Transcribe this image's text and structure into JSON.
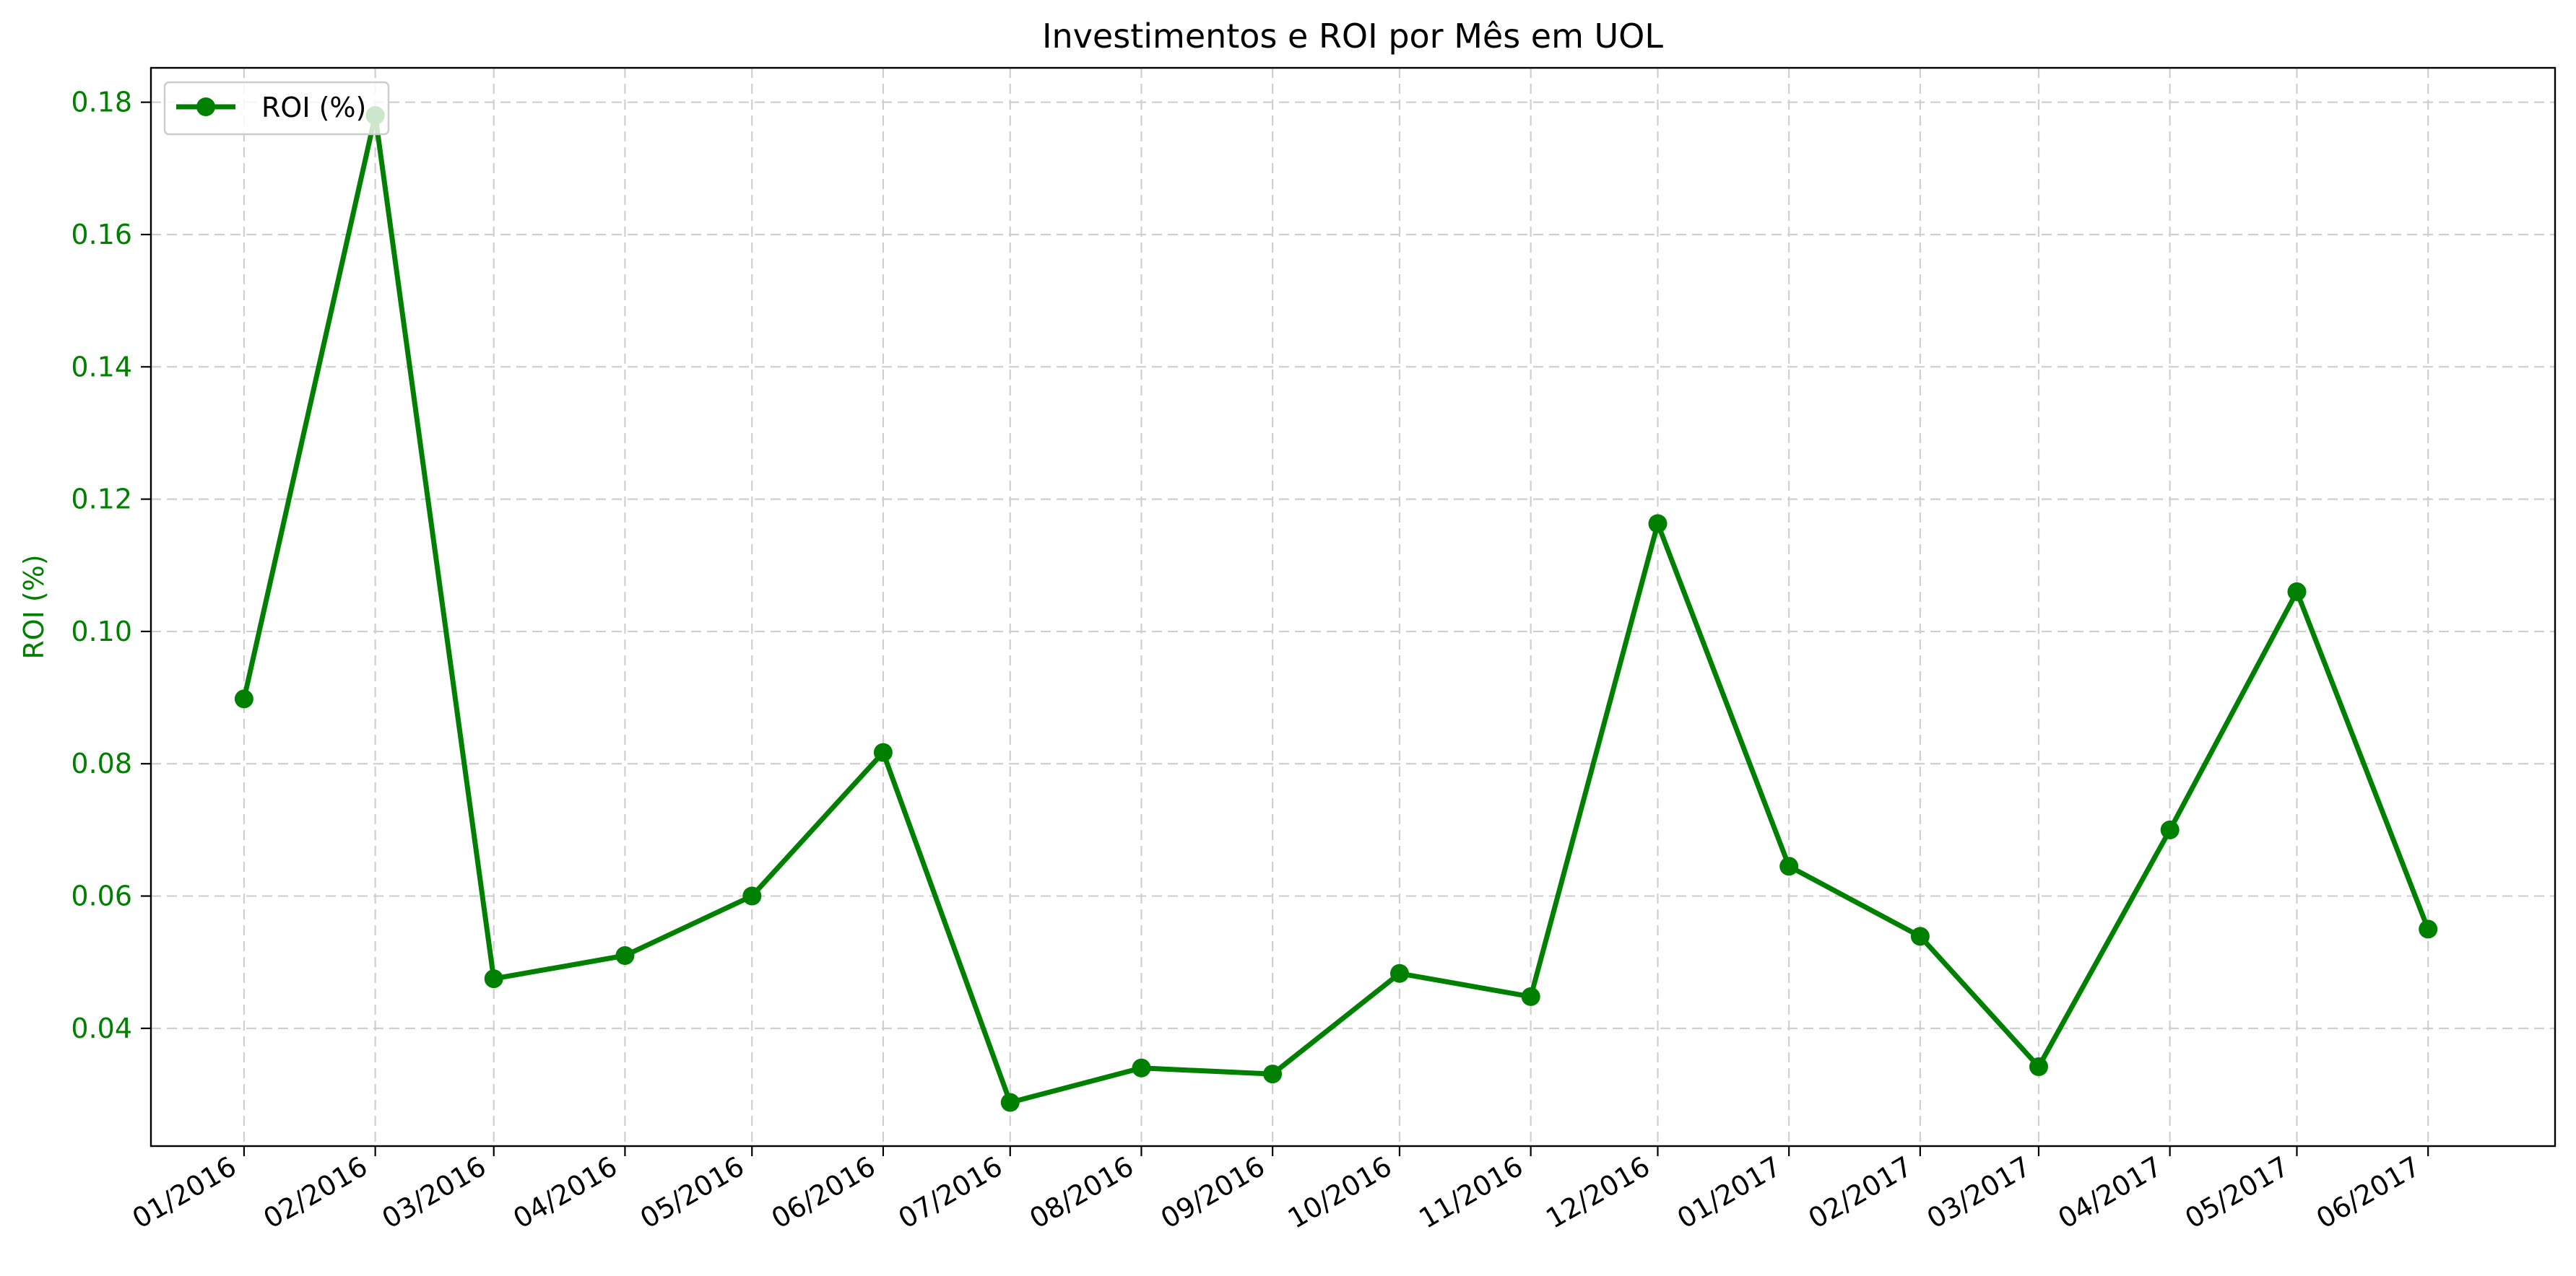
{
  "chart_data": {
    "type": "line",
    "title": "Investimentos e ROI por Mês em UOL",
    "xlabel": "",
    "ylabel": "ROI (%)",
    "categories": [
      "01/2016",
      "02/2016",
      "03/2016",
      "04/2016",
      "05/2016",
      "06/2016",
      "07/2016",
      "08/2016",
      "09/2016",
      "10/2016",
      "11/2016",
      "12/2016",
      "01/2017",
      "02/2017",
      "03/2017",
      "04/2017",
      "05/2017",
      "06/2017"
    ],
    "x": [
      "2016-01-01",
      "2016-02-01",
      "2016-02-29",
      "2016-03-31",
      "2016-04-30",
      "2016-05-31",
      "2016-06-30",
      "2016-07-31",
      "2016-08-31",
      "2016-09-30",
      "2016-10-31",
      "2016-11-30",
      "2016-12-31",
      "2017-01-31",
      "2017-02-28",
      "2017-03-31",
      "2017-04-30",
      "2017-05-31"
    ],
    "series": [
      {
        "name": "ROI (%)",
        "values": [
          0.0898,
          0.178,
          0.0475,
          0.051,
          0.06,
          0.0817,
          0.0288,
          0.034,
          0.0331,
          0.0483,
          0.0448,
          0.1163,
          0.0645,
          0.0539,
          0.0342,
          0.07,
          0.106,
          0.055
        ]
      }
    ],
    "xlim": [
      "2015-12-10",
      "2017-06-30"
    ],
    "ylim": [
      0.0222,
      0.1852
    ],
    "yticks": [
      "0.04",
      "0.06",
      "0.08",
      "0.10",
      "0.12",
      "0.14",
      "0.16",
      "0.18"
    ],
    "grid": true,
    "legend": {
      "location": "upper left",
      "entries": [
        "ROI (%)"
      ]
    },
    "colors": {
      "line": "#008000",
      "axis_label": "#008000",
      "grid": "#cfcfcf"
    }
  }
}
